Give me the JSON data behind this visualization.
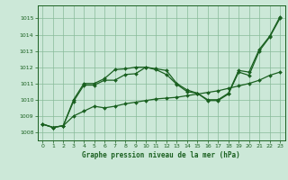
{
  "title": "Graphe pression niveau de la mer (hPa)",
  "background_color": "#cce8d8",
  "plot_bg_color": "#cce8d8",
  "grid_color": "#88bb99",
  "line_color": "#1a6020",
  "ylim": [
    1007.5,
    1015.8
  ],
  "yticks": [
    1008,
    1009,
    1010,
    1011,
    1012,
    1013,
    1014,
    1015
  ],
  "xlim": [
    -0.5,
    23.5
  ],
  "xticks": [
    0,
    1,
    2,
    3,
    4,
    5,
    6,
    7,
    8,
    9,
    10,
    11,
    12,
    13,
    14,
    15,
    16,
    17,
    18,
    19,
    20,
    21,
    22,
    23
  ],
  "series1": [
    1008.5,
    1008.3,
    1008.4,
    1010.0,
    1011.0,
    1011.0,
    1011.3,
    1011.85,
    1011.9,
    1012.0,
    1012.0,
    1011.9,
    1011.8,
    1011.0,
    1010.6,
    1010.4,
    1010.0,
    1010.0,
    1010.4,
    1011.8,
    1011.7,
    1013.1,
    1013.9,
    1015.1
  ],
  "series2": [
    1008.5,
    1008.3,
    1008.4,
    1009.9,
    1010.9,
    1010.9,
    1011.2,
    1011.2,
    1011.55,
    1011.6,
    1012.0,
    1011.85,
    1011.55,
    1010.95,
    1010.5,
    1010.4,
    1009.95,
    1009.95,
    1010.35,
    1011.7,
    1011.5,
    1013.0,
    1013.85,
    1015.0
  ],
  "series3": [
    1008.5,
    1008.3,
    1008.4,
    1009.0,
    1009.3,
    1009.6,
    1009.5,
    1009.6,
    1009.75,
    1009.85,
    1009.95,
    1010.05,
    1010.1,
    1010.15,
    1010.25,
    1010.35,
    1010.45,
    1010.55,
    1010.7,
    1010.85,
    1011.0,
    1011.2,
    1011.5,
    1011.7
  ],
  "marker": "D",
  "marker_size": 2.0,
  "linewidth": 0.9,
  "title_fontsize": 5.5,
  "tick_fontsize": 4.5
}
